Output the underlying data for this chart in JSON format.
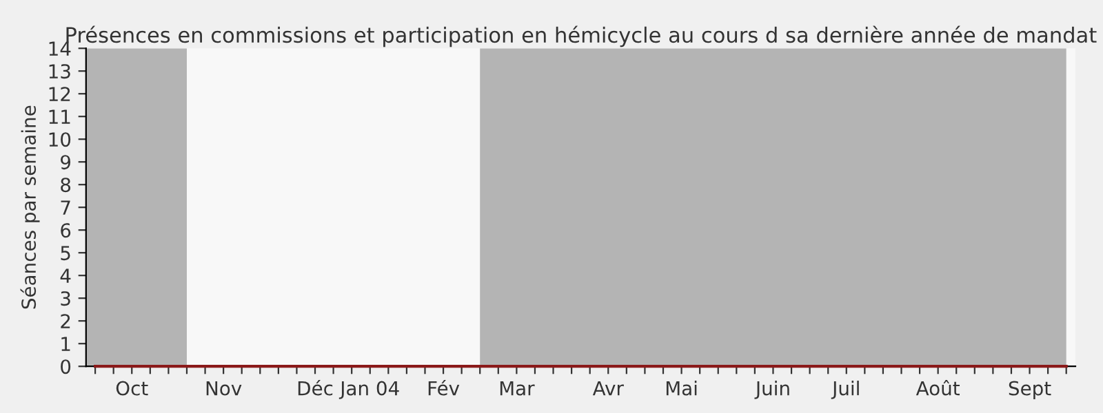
{
  "chart_data": {
    "type": "line",
    "title": "Présences en commissions et participation en hémicycle au cours d sa dernière année de mandat",
    "ylabel": "Séances par semaine",
    "categories": [
      null,
      null,
      "Oct",
      null,
      null,
      null,
      null,
      "Nov",
      null,
      null,
      null,
      null,
      "Déc",
      null,
      null,
      "Jan 04",
      null,
      null,
      null,
      "Fév",
      null,
      null,
      null,
      "Mar",
      null,
      null,
      null,
      null,
      "Avr",
      null,
      null,
      null,
      "Mai",
      null,
      null,
      null,
      null,
      "Juin",
      null,
      null,
      null,
      "Juil",
      null,
      null,
      null,
      null,
      "Août",
      null,
      null,
      null,
      null,
      "Sept",
      null,
      null
    ],
    "series": [
      {
        "color": "#8b1a1a",
        "values": [
          0,
          0,
          0,
          0,
          0,
          0,
          0,
          0,
          0,
          0,
          0,
          0,
          0,
          0,
          0,
          0,
          0,
          0,
          0,
          0,
          0,
          0,
          0,
          0,
          0,
          0,
          0,
          0,
          0,
          0,
          0,
          0,
          0,
          0,
          0,
          0,
          0,
          0,
          0,
          0,
          0,
          0,
          0,
          0,
          0,
          0,
          0,
          0,
          0,
          0,
          0,
          0,
          0,
          0
        ]
      }
    ],
    "ylim": [
      0,
      14
    ],
    "yticks": [
      0,
      1,
      2,
      3,
      4,
      5,
      6,
      7,
      8,
      9,
      10,
      11,
      12,
      13,
      14
    ],
    "grid": false,
    "legend": false
  }
}
